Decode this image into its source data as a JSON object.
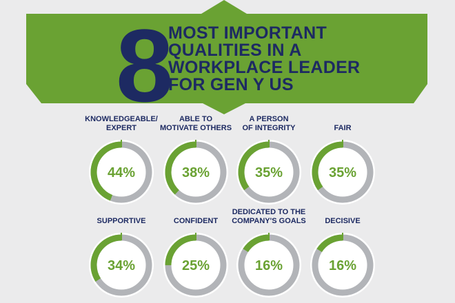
{
  "header": {
    "number": "8",
    "lines": [
      "MOST IMPORTANT",
      "QUALITIES IN A",
      "WORKPLACE LEADER",
      "FOR GEN Y US"
    ]
  },
  "colors": {
    "background": "#ebebec",
    "banner": "#6aa233",
    "navy": "#1d2a62",
    "ring_fill": "#6aa233",
    "ring_track": "#b2b4b8"
  },
  "chart_data": {
    "type": "donut-grid",
    "title": "8 MOST IMPORTANT QUALITIES IN A WORKPLACE LEADER FOR GEN Y US",
    "unit": "%",
    "items": [
      {
        "label_lines": [
          "KNOWLEDGEABLE/",
          "EXPERT"
        ],
        "value": 44,
        "display": "44%"
      },
      {
        "label_lines": [
          "ABLE TO",
          "MOTIVATE OTHERS"
        ],
        "value": 38,
        "display": "38%"
      },
      {
        "label_lines": [
          "A PERSON",
          "OF INTEGRITY"
        ],
        "value": 35,
        "display": "35%"
      },
      {
        "label_lines": [
          "FAIR"
        ],
        "value": 35,
        "display": "35%"
      },
      {
        "label_lines": [
          "SUPPORTIVE"
        ],
        "value": 34,
        "display": "34%"
      },
      {
        "label_lines": [
          "CONFIDENT"
        ],
        "value": 25,
        "display": "25%"
      },
      {
        "label_lines": [
          "DEDICATED TO THE",
          "COMPANY'S GOALS"
        ],
        "value": 16,
        "display": "16%"
      },
      {
        "label_lines": [
          "DECISIVE"
        ],
        "value": 16,
        "display": "16%"
      }
    ]
  }
}
